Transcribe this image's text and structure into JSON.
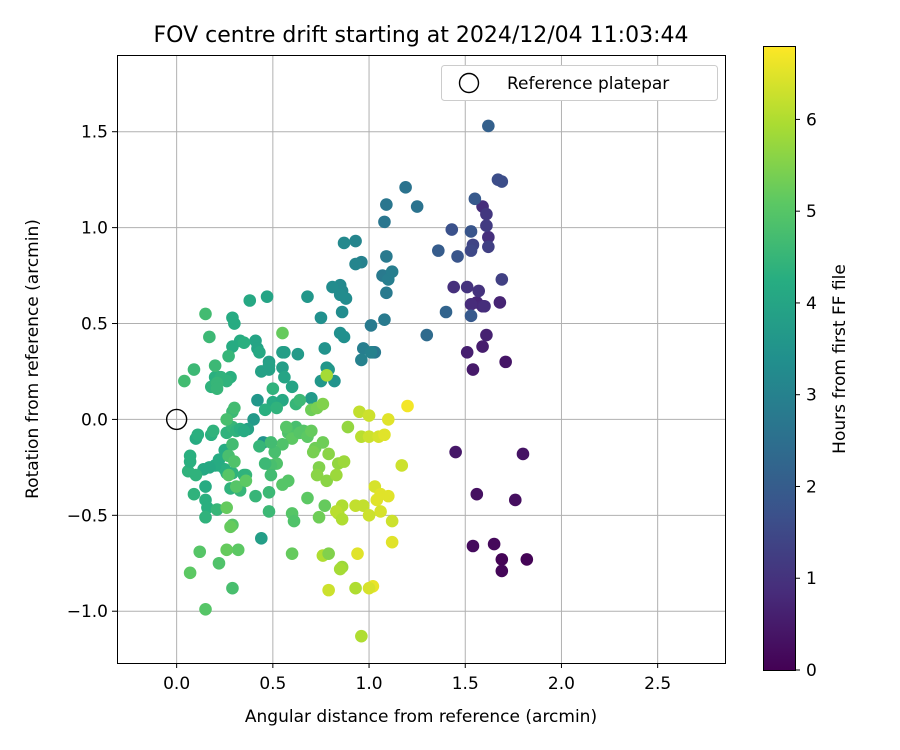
{
  "chart_data": {
    "type": "scatter",
    "title": "FOV centre drift starting at 2024/12/04 11:03:44",
    "xlabel": "Angular distance from reference (arcmin)",
    "ylabel": "Rotation from reference (arcmin)",
    "xlim": [
      -0.31,
      2.85
    ],
    "ylim": [
      -1.27,
      1.9
    ],
    "xticks": [
      0.0,
      0.5,
      1.0,
      1.5,
      2.0,
      2.5
    ],
    "xtick_labels": [
      "0.0",
      "0.5",
      "1.0",
      "1.5",
      "2.0",
      "2.5"
    ],
    "yticks": [
      -1.0,
      -0.5,
      0.0,
      0.5,
      1.0,
      1.5
    ],
    "ytick_labels": [
      "−1.0",
      "−0.5",
      "0.0",
      "0.5",
      "1.0",
      "1.5"
    ],
    "grid": true,
    "legend": {
      "placement": "upper right",
      "entries": [
        {
          "label": "Reference platepar",
          "marker": "open-circle"
        }
      ]
    },
    "colorbar": {
      "label": "Hours from first FF file",
      "range": [
        0,
        6.8
      ],
      "ticks": [
        0,
        1,
        2,
        3,
        4,
        5,
        6
      ],
      "tick_labels": [
        "0",
        "1",
        "2",
        "3",
        "4",
        "5",
        "6"
      ],
      "colormap": "viridis",
      "colormap_stops": [
        "#440154",
        "#472c7a",
        "#3b518b",
        "#2c718e",
        "#21908d",
        "#27ad81",
        "#5cc863",
        "#aadc32",
        "#fde725"
      ]
    },
    "reference": {
      "x": 0.0,
      "y": 0.0
    },
    "points": [
      [
        1.69,
        -0.73,
        0.05
      ],
      [
        1.82,
        -0.73,
        0.05
      ],
      [
        1.69,
        -0.79,
        0.1
      ],
      [
        1.65,
        -0.65,
        0.15
      ],
      [
        1.54,
        -0.66,
        0.2
      ],
      [
        1.76,
        -0.42,
        0.25
      ],
      [
        1.56,
        -0.39,
        0.3
      ],
      [
        1.8,
        -0.18,
        0.35
      ],
      [
        1.45,
        -0.17,
        0.45
      ],
      [
        1.71,
        0.3,
        0.4
      ],
      [
        1.54,
        0.26,
        0.5
      ],
      [
        1.59,
        0.38,
        0.55
      ],
      [
        1.51,
        0.35,
        0.6
      ],
      [
        1.61,
        0.44,
        0.65
      ],
      [
        1.68,
        0.61,
        0.7
      ],
      [
        1.56,
        0.61,
        0.75
      ],
      [
        1.59,
        0.59,
        0.8
      ],
      [
        1.53,
        0.6,
        0.85
      ],
      [
        1.6,
        0.59,
        0.9
      ],
      [
        1.44,
        0.69,
        0.95
      ],
      [
        1.51,
        0.69,
        1.0
      ],
      [
        1.57,
        0.67,
        1.0
      ],
      [
        1.59,
        1.11,
        0.9
      ],
      [
        1.62,
        0.95,
        0.95
      ],
      [
        1.61,
        1.07,
        1.1
      ],
      [
        1.61,
        1.01,
        1.2
      ],
      [
        1.69,
        0.73,
        1.3
      ],
      [
        1.62,
        0.9,
        1.3
      ],
      [
        1.54,
        0.91,
        1.4
      ],
      [
        1.53,
        0.88,
        1.5
      ],
      [
        1.67,
        1.25,
        1.6
      ],
      [
        1.69,
        1.24,
        1.6
      ],
      [
        1.53,
        0.98,
        1.8
      ],
      [
        1.55,
        1.15,
        1.9
      ],
      [
        1.43,
        0.99,
        1.7
      ],
      [
        1.46,
        0.85,
        1.8
      ],
      [
        1.53,
        0.54,
        1.9
      ],
      [
        1.36,
        0.88,
        2.0
      ],
      [
        1.62,
        1.53,
        2.1
      ],
      [
        1.4,
        0.56,
        2.2
      ],
      [
        1.3,
        0.44,
        2.4
      ],
      [
        1.25,
        1.11,
        2.6
      ],
      [
        1.19,
        1.21,
        2.6
      ],
      [
        1.09,
        1.12,
        2.7
      ],
      [
        1.08,
        1.03,
        2.7
      ],
      [
        1.09,
        0.85,
        2.8
      ],
      [
        1.07,
        0.75,
        2.8
      ],
      [
        1.1,
        0.73,
        2.9
      ],
      [
        1.12,
        0.77,
        2.9
      ],
      [
        1.09,
        0.66,
        2.8
      ],
      [
        1.08,
        0.52,
        2.8
      ],
      [
        1.03,
        0.35,
        2.8
      ],
      [
        1.02,
        0.35,
        2.7
      ],
      [
        1.01,
        0.49,
        2.8
      ],
      [
        0.97,
        0.37,
        2.9
      ],
      [
        0.96,
        0.31,
        3.0
      ],
      [
        1.01,
        0.35,
        3.0
      ],
      [
        0.96,
        0.82,
        3.0
      ],
      [
        0.93,
        0.81,
        3.1
      ],
      [
        0.93,
        0.93,
        3.1
      ],
      [
        0.87,
        0.92,
        3.2
      ],
      [
        0.85,
        0.7,
        3.2
      ],
      [
        0.86,
        0.67,
        3.2
      ],
      [
        0.88,
        0.63,
        3.3
      ],
      [
        0.85,
        0.65,
        3.3
      ],
      [
        0.81,
        0.69,
        3.3
      ],
      [
        0.86,
        0.56,
        3.3
      ],
      [
        0.85,
        0.45,
        3.4
      ],
      [
        0.87,
        0.43,
        3.4
      ],
      [
        0.75,
        0.53,
        3.4
      ],
      [
        0.77,
        0.37,
        3.5
      ],
      [
        0.82,
        0.2,
        3.5
      ],
      [
        0.75,
        0.2,
        3.6
      ],
      [
        0.78,
        0.27,
        3.6
      ],
      [
        0.79,
        0.26,
        3.6
      ],
      [
        0.68,
        0.64,
        3.6
      ],
      [
        0.7,
        0.11,
        3.7
      ],
      [
        0.63,
        0.34,
        3.7
      ],
      [
        0.55,
        0.35,
        3.8
      ],
      [
        0.56,
        0.35,
        3.8
      ],
      [
        0.55,
        0.27,
        3.8
      ],
      [
        0.48,
        0.3,
        3.8
      ],
      [
        0.48,
        0.26,
        3.9
      ],
      [
        0.44,
        0.25,
        3.9
      ],
      [
        0.48,
        0.28,
        3.9
      ],
      [
        0.47,
        0.64,
        4.0
      ],
      [
        0.41,
        0.41,
        4.0
      ],
      [
        0.42,
        0.37,
        4.0
      ],
      [
        0.43,
        0.35,
        4.1
      ],
      [
        0.38,
        0.62,
        4.1
      ],
      [
        0.3,
        0.5,
        4.2
      ],
      [
        0.29,
        0.53,
        4.2
      ],
      [
        0.33,
        0.41,
        4.2
      ],
      [
        0.29,
        0.38,
        4.2
      ],
      [
        0.35,
        0.4,
        4.3
      ],
      [
        0.28,
        0.22,
        4.3
      ],
      [
        0.22,
        0.22,
        4.3
      ],
      [
        0.2,
        0.22,
        4.3
      ],
      [
        0.23,
        0.22,
        4.4
      ],
      [
        0.26,
        0.2,
        4.4
      ],
      [
        0.18,
        0.17,
        4.4
      ],
      [
        0.21,
        0.19,
        4.5
      ],
      [
        0.21,
        0.16,
        4.5
      ],
      [
        0.27,
        0.33,
        4.5
      ],
      [
        0.2,
        0.28,
        4.6
      ],
      [
        0.17,
        0.43,
        4.6
      ],
      [
        0.15,
        0.55,
        4.7
      ],
      [
        0.09,
        0.26,
        4.6
      ],
      [
        0.04,
        0.2,
        4.7
      ],
      [
        0.42,
        0.1,
        3.6
      ],
      [
        0.4,
        0.0,
        3.7
      ],
      [
        0.45,
        -0.12,
        3.5
      ],
      [
        0.37,
        -0.05,
        3.9
      ],
      [
        0.44,
        -0.62,
        3.8
      ],
      [
        0.5,
        0.09,
        4.2
      ],
      [
        0.46,
        0.05,
        4.3
      ],
      [
        0.5,
        0.16,
        4.4
      ],
      [
        0.56,
        0.22,
        4.0
      ],
      [
        0.55,
        0.1,
        4.1
      ],
      [
        0.52,
        0.06,
        4.4
      ],
      [
        0.6,
        0.17,
        4.0
      ],
      [
        0.62,
        0.08,
        4.5
      ],
      [
        0.64,
        0.1,
        4.6
      ],
      [
        0.62,
        -0.04,
        4.8
      ],
      [
        0.58,
        -0.07,
        4.9
      ],
      [
        0.57,
        -0.04,
        5.0
      ],
      [
        0.6,
        -0.1,
        5.1
      ],
      [
        0.66,
        -0.06,
        5.0
      ],
      [
        0.64,
        -0.07,
        5.0
      ],
      [
        0.68,
        -0.09,
        5.1
      ],
      [
        0.7,
        -0.06,
        5.2
      ],
      [
        0.7,
        0.05,
        5.3
      ],
      [
        0.73,
        0.06,
        5.4
      ],
      [
        0.76,
        0.08,
        5.5
      ],
      [
        0.72,
        -0.15,
        5.3
      ],
      [
        0.71,
        -0.17,
        5.4
      ],
      [
        0.76,
        -0.12,
        5.3
      ],
      [
        0.79,
        -0.18,
        5.6
      ],
      [
        0.74,
        -0.25,
        5.5
      ],
      [
        0.73,
        -0.29,
        5.6
      ],
      [
        0.78,
        -0.32,
        5.6
      ],
      [
        0.84,
        -0.23,
        5.7
      ],
      [
        0.87,
        -0.22,
        5.8
      ],
      [
        0.89,
        -0.04,
        5.7
      ],
      [
        0.83,
        -0.29,
        5.8
      ],
      [
        0.84,
        -0.49,
        6.0
      ],
      [
        0.86,
        -0.45,
        6.0
      ],
      [
        0.83,
        -0.48,
        6.1
      ],
      [
        0.86,
        -0.52,
        6.0
      ],
      [
        0.93,
        -0.45,
        6.2
      ],
      [
        0.97,
        -0.45,
        6.2
      ],
      [
        0.96,
        -0.09,
        6.1
      ],
      [
        0.95,
        0.04,
        6.2
      ],
      [
        1.0,
        0.02,
        6.3
      ],
      [
        1.0,
        -0.09,
        6.3
      ],
      [
        1.05,
        -0.09,
        6.4
      ],
      [
        1.08,
        -0.08,
        6.5
      ],
      [
        1.1,
        0.0,
        6.5
      ],
      [
        1.2,
        0.07,
        6.7
      ],
      [
        1.03,
        -0.35,
        6.4
      ],
      [
        1.06,
        -0.39,
        6.5
      ],
      [
        1.1,
        -0.4,
        6.5
      ],
      [
        1.04,
        -0.42,
        6.5
      ],
      [
        1.06,
        -0.48,
        6.4
      ],
      [
        1.0,
        -0.5,
        6.3
      ],
      [
        1.02,
        -0.87,
        6.6
      ],
      [
        1.0,
        -0.88,
        6.4
      ],
      [
        0.94,
        -0.7,
        6.5
      ],
      [
        0.93,
        -0.88,
        6.0
      ],
      [
        0.86,
        -0.77,
        5.8
      ],
      [
        0.85,
        -0.78,
        5.9
      ],
      [
        0.79,
        -0.89,
        6.3
      ],
      [
        0.76,
        -0.71,
        6.0
      ],
      [
        0.79,
        -0.7,
        5.5
      ],
      [
        0.96,
        -1.13,
        6.0
      ],
      [
        1.12,
        -0.53,
        6.3
      ],
      [
        1.12,
        -0.64,
        6.5
      ],
      [
        1.17,
        -0.24,
        6.3
      ],
      [
        0.74,
        -0.51,
        5.3
      ],
      [
        0.77,
        -0.45,
        5.2
      ],
      [
        0.68,
        -0.41,
        5.1
      ],
      [
        0.6,
        -0.49,
        5.0
      ],
      [
        0.61,
        -0.53,
        4.9
      ],
      [
        0.58,
        -0.32,
        5.0
      ],
      [
        0.55,
        -0.34,
        5.0
      ],
      [
        0.52,
        -0.23,
        4.9
      ],
      [
        0.49,
        -0.24,
        4.8
      ],
      [
        0.55,
        -0.13,
        4.9
      ],
      [
        0.49,
        -0.29,
        4.7
      ],
      [
        0.51,
        -0.17,
        4.8
      ],
      [
        0.46,
        -0.23,
        4.6
      ],
      [
        0.49,
        -0.12,
        4.7
      ],
      [
        0.43,
        -0.14,
        4.5
      ],
      [
        0.41,
        -0.4,
        4.5
      ],
      [
        0.48,
        -0.38,
        4.6
      ],
      [
        0.48,
        -0.48,
        4.6
      ],
      [
        0.36,
        -0.29,
        4.5
      ],
      [
        0.35,
        -0.29,
        4.4
      ],
      [
        0.33,
        -0.37,
        4.5
      ],
      [
        0.28,
        -0.36,
        4.4
      ],
      [
        0.29,
        -0.28,
        4.4
      ],
      [
        0.26,
        -0.28,
        4.3
      ],
      [
        0.25,
        -0.26,
        4.3
      ],
      [
        0.22,
        -0.24,
        4.3
      ],
      [
        0.25,
        -0.16,
        4.2
      ],
      [
        0.22,
        -0.21,
        4.2
      ],
      [
        0.2,
        -0.24,
        4.2
      ],
      [
        0.17,
        -0.25,
        4.1
      ],
      [
        0.14,
        -0.26,
        4.1
      ],
      [
        0.15,
        -0.35,
        4.2
      ],
      [
        0.15,
        -0.42,
        4.3
      ],
      [
        0.16,
        -0.46,
        4.3
      ],
      [
        0.15,
        -0.51,
        4.4
      ],
      [
        0.21,
        -0.47,
        4.5
      ],
      [
        0.09,
        -0.39,
        4.4
      ],
      [
        0.1,
        -0.29,
        4.4
      ],
      [
        0.06,
        -0.27,
        4.4
      ],
      [
        0.07,
        -0.22,
        4.3
      ],
      [
        0.07,
        -0.19,
        4.3
      ],
      [
        0.1,
        -0.1,
        4.2
      ],
      [
        0.11,
        -0.08,
        4.3
      ],
      [
        0.18,
        -0.08,
        4.3
      ],
      [
        0.19,
        -0.06,
        4.4
      ],
      [
        0.26,
        -0.07,
        4.4
      ],
      [
        0.29,
        -0.04,
        4.5
      ],
      [
        0.31,
        -0.06,
        4.4
      ],
      [
        0.33,
        -0.05,
        4.3
      ],
      [
        0.35,
        -0.06,
        4.2
      ],
      [
        0.29,
        0.04,
        4.6
      ],
      [
        0.3,
        0.06,
        4.7
      ],
      [
        0.26,
        0.0,
        4.8
      ],
      [
        0.27,
        -0.19,
        4.8
      ],
      [
        0.29,
        -0.13,
        4.7
      ],
      [
        0.3,
        -0.22,
        4.9
      ],
      [
        0.27,
        -0.29,
        5.0
      ],
      [
        0.31,
        -0.35,
        5.0
      ],
      [
        0.36,
        -0.32,
        5.1
      ],
      [
        0.26,
        -0.46,
        5.2
      ],
      [
        0.29,
        -0.55,
        5.0
      ],
      [
        0.28,
        -0.56,
        5.2
      ],
      [
        0.32,
        -0.68,
        5.1
      ],
      [
        0.26,
        -0.68,
        5.2
      ],
      [
        0.12,
        -0.69,
        5.0
      ],
      [
        0.22,
        -0.75,
        4.9
      ],
      [
        0.29,
        -0.88,
        4.8
      ],
      [
        0.07,
        -0.8,
        5.1
      ],
      [
        0.15,
        -0.99,
        5.0
      ],
      [
        0.55,
        0.45,
        5.2
      ],
      [
        0.78,
        0.23,
        5.9
      ],
      [
        0.6,
        -0.7,
        5.2
      ]
    ]
  }
}
